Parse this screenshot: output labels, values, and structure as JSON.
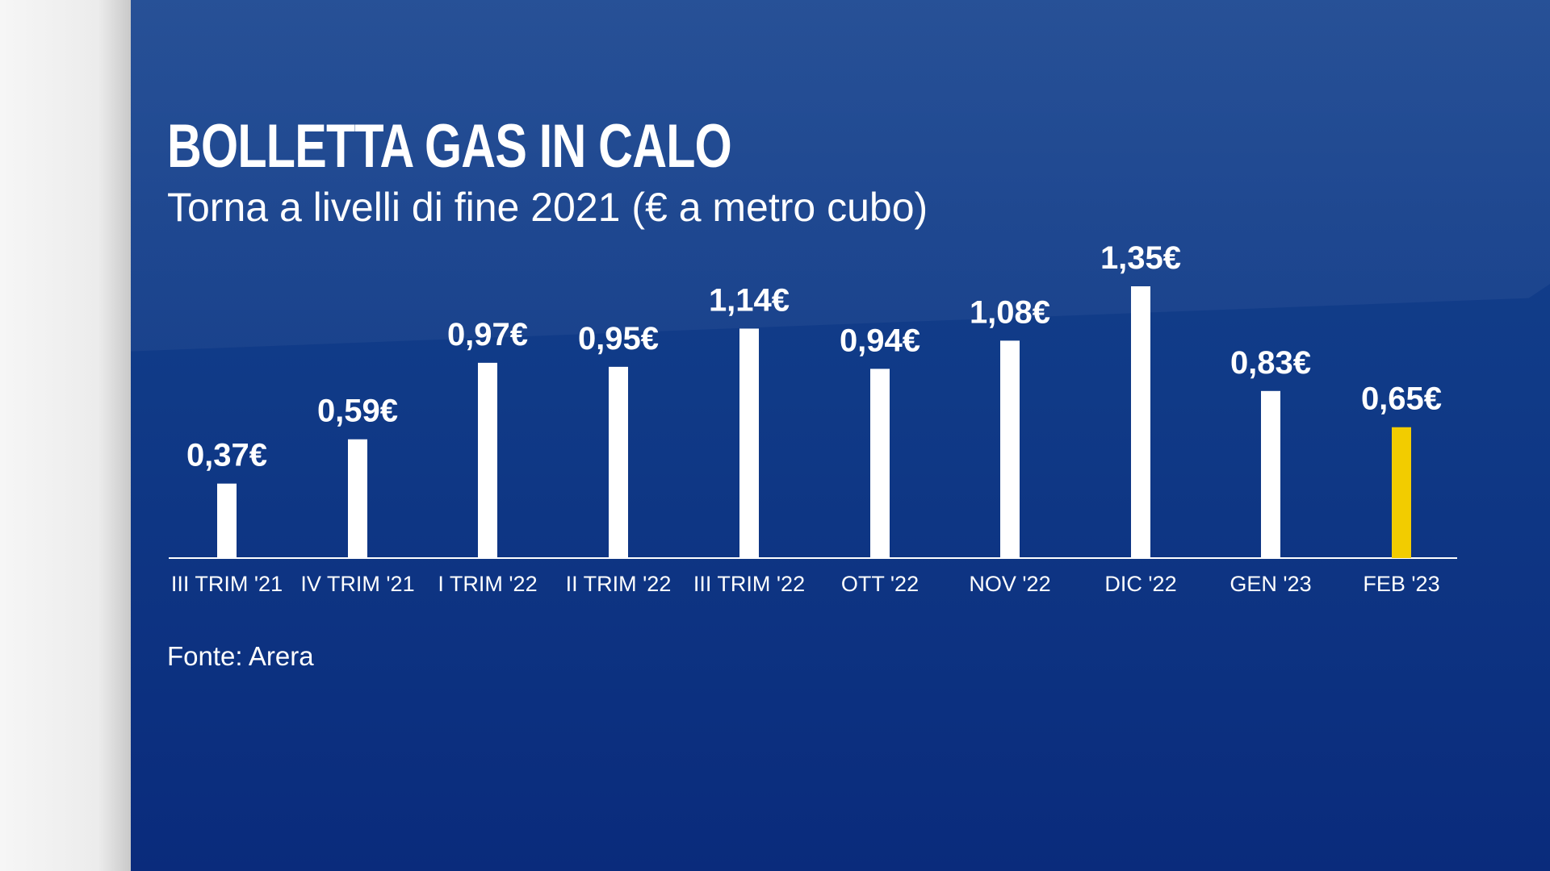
{
  "chart_data": {
    "type": "bar",
    "title": "BOLLETTA GAS IN CALO",
    "subtitle": "Torna a livelli di fine 2021 (€ a metro cubo)",
    "categories": [
      "III TRIM '21",
      "IV TRIM '21",
      "I TRIM '22",
      "II TRIM '22",
      "III TRIM '22",
      "OTT '22",
      "NOV '22",
      "DIC '22",
      "GEN '23",
      "FEB '23"
    ],
    "values": [
      0.37,
      0.59,
      0.97,
      0.95,
      1.14,
      0.94,
      1.08,
      1.35,
      0.83,
      0.65
    ],
    "value_labels": [
      "0,37€",
      "0,59€",
      "0,97€",
      "0,95€",
      "1,14€",
      "0,94€",
      "1,08€",
      "1,35€",
      "0,83€",
      "0,65€"
    ],
    "bar_colors": [
      "#ffffff",
      "#ffffff",
      "#ffffff",
      "#ffffff",
      "#ffffff",
      "#ffffff",
      "#ffffff",
      "#ffffff",
      "#ffffff",
      "#f2cc00"
    ],
    "ylim": [
      0,
      1.35
    ],
    "grid": false,
    "legend": "none"
  },
  "source": "Fonte: Arera",
  "colors": {
    "background": "#103a87",
    "bar": "#ffffff",
    "highlight": "#f2cc00",
    "text": "#ffffff"
  }
}
